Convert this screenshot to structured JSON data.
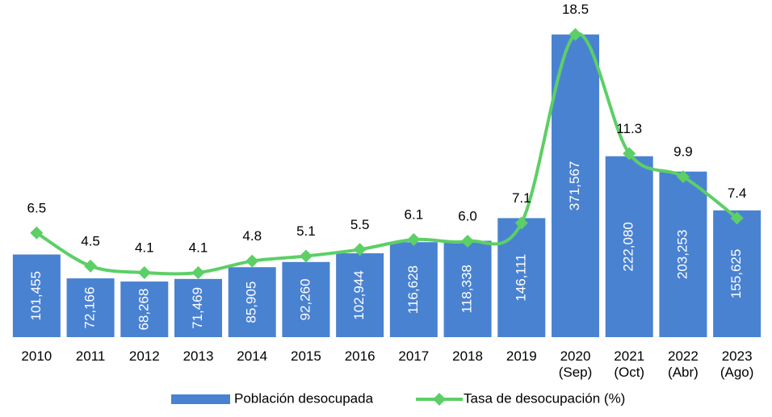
{
  "chart_data": {
    "type": "bar-line",
    "categories": [
      "2010",
      "2011",
      "2012",
      "2013",
      "2014",
      "2015",
      "2016",
      "2017",
      "2018",
      "2019",
      "2020 (Sep)",
      "2021 (Oct)",
      "2022 (Abr)",
      "2023 (Ago)"
    ],
    "series": [
      {
        "name": "Población desocupada",
        "type": "bar",
        "color": "#4a82d2",
        "values": [
          101455,
          72166,
          68268,
          71469,
          85905,
          92260,
          102944,
          116628,
          118338,
          146111,
          371567,
          222080,
          203253,
          155625
        ],
        "value_labels": [
          "101,455",
          "72,166",
          "68,268",
          "71,469",
          "85,905",
          "92,260",
          "102,944",
          "116,628",
          "118,338",
          "146,111",
          "371,567",
          "222,080",
          "203,253",
          "155,625"
        ]
      },
      {
        "name": "Tasa de desocupación (%)",
        "type": "line",
        "axis": "y2",
        "color": "#5ccf66",
        "values": [
          6.5,
          4.5,
          4.1,
          4.1,
          4.8,
          5.1,
          5.5,
          6.1,
          6.0,
          7.1,
          18.5,
          11.3,
          9.9,
          7.4
        ],
        "value_labels": [
          "6.5",
          "4.5",
          "4.1",
          "4.1",
          "4.8",
          "5.1",
          "5.5",
          "6.1",
          "6.0",
          "7.1",
          "18.5",
          "11.3",
          "9.9",
          "7.4"
        ]
      }
    ],
    "ylim": [
      0,
      400000
    ],
    "y2lim": [
      0.2,
      19.9
    ],
    "legend": "bottom"
  }
}
